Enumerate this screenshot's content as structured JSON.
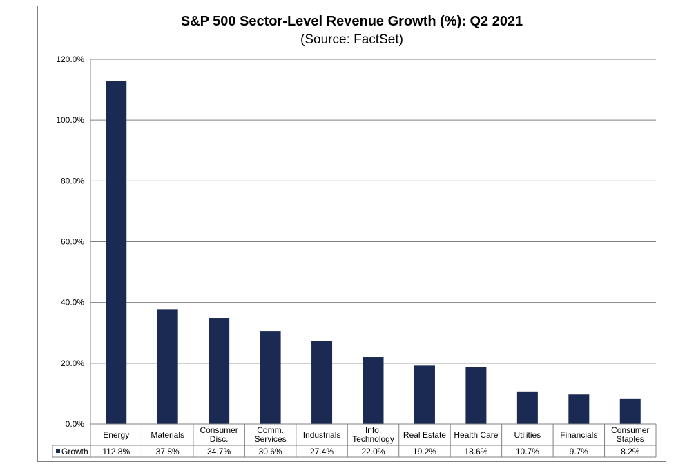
{
  "chart_data": {
    "type": "bar",
    "title": "S&P 500 Sector-Level Revenue Growth (%): Q2 2021",
    "subtitle": "(Source: FactSet)",
    "categories": [
      [
        "Energy"
      ],
      [
        "Materials"
      ],
      [
        "Consumer",
        "Disc."
      ],
      [
        "Comm.",
        "Services"
      ],
      [
        "Industrials"
      ],
      [
        "Info.",
        "Technology"
      ],
      [
        "Real Estate"
      ],
      [
        "Health Care"
      ],
      [
        "Utilities"
      ],
      [
        "Financials"
      ],
      [
        "Consumer",
        "Staples"
      ]
    ],
    "series": [
      {
        "name": "Growth",
        "values": [
          112.8,
          37.8,
          34.7,
          30.6,
          27.4,
          22.0,
          19.2,
          18.6,
          10.7,
          9.7,
          8.2
        ],
        "labels": [
          "112.8%",
          "37.8%",
          "34.7%",
          "30.6%",
          "27.4%",
          "22.0%",
          "19.2%",
          "18.6%",
          "10.7%",
          "9.7%",
          "8.2%"
        ],
        "color": "#1b2a52"
      }
    ],
    "ylim": [
      0,
      120
    ],
    "yticks": [
      0,
      20,
      40,
      60,
      80,
      100,
      120
    ],
    "ytick_labels": [
      "0.0%",
      "20.0%",
      "40.0%",
      "60.0%",
      "80.0%",
      "100.0%",
      "120.0%"
    ],
    "grid": true,
    "legend": "data-table",
    "xlabel": "",
    "ylabel": ""
  }
}
